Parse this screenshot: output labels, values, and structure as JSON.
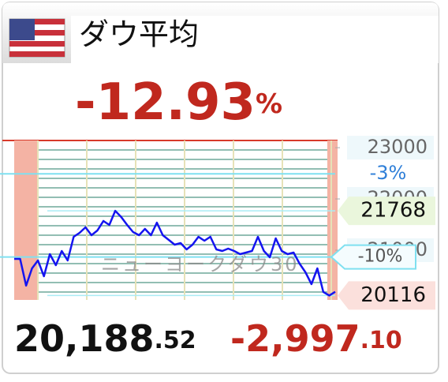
{
  "header": {
    "title": "ダウ平均"
  },
  "quote": {
    "change_percent": "-12.93",
    "percent_sign": "%",
    "price": "20,188",
    "price_decimals": ".52",
    "change": "-2,997",
    "change_decimals": ".10"
  },
  "chart_data": {
    "type": "line",
    "subtitle": "ニューヨークダウ30",
    "series": [
      {
        "name": "ダウ平均",
        "color": "#1414f0",
        "values": [
          20831,
          20831,
          20308,
          20646,
          20800,
          20492,
          20923,
          20708,
          20985,
          20800,
          21262,
          21338,
          21446,
          21292,
          21385,
          21569,
          21492,
          21768,
          21646,
          21492,
          21354,
          21292,
          21415,
          21292,
          21538,
          21292,
          21200,
          21108,
          21138,
          21015,
          21108,
          21262,
          21185,
          21262,
          21015,
          20985,
          21031,
          20985,
          20923,
          20954,
          20985,
          21262,
          20985,
          20862,
          21231,
          20985,
          20923,
          20954,
          20738,
          20569,
          20338,
          20646,
          20185,
          20116,
          20188
        ]
      }
    ],
    "ylim": [
      20030,
      23140
    ],
    "yticks": [
      23000,
      22000,
      21000
    ],
    "reference_lines": [
      {
        "value": 22490,
        "label": "-3%"
      },
      {
        "value": 20867,
        "label": "-10%"
      }
    ],
    "high": 21768,
    "low": 20116
  }
}
